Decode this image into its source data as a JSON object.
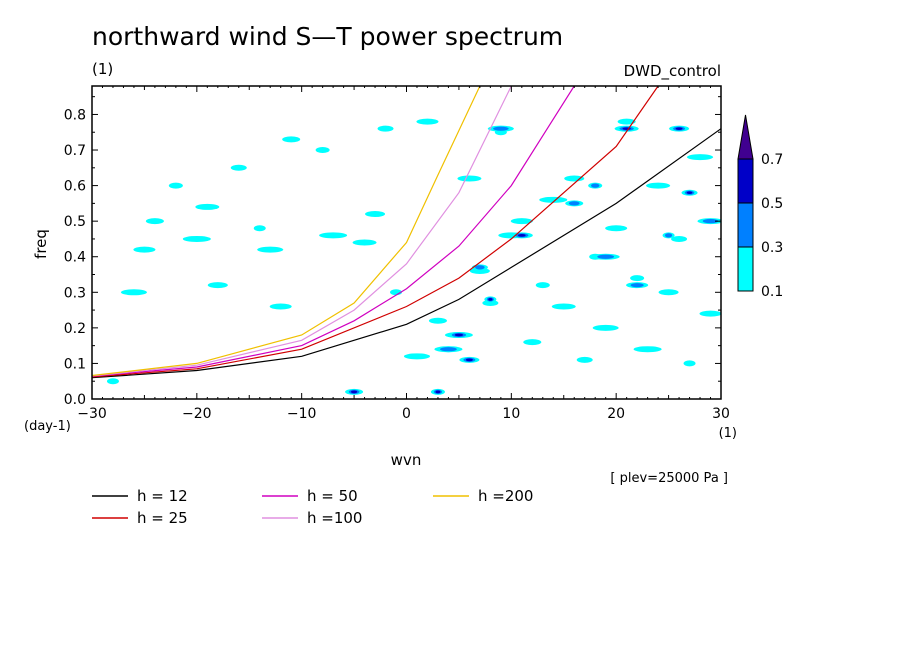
{
  "chart_data": {
    "type": "heatmap",
    "title": "northward wind S—T power spectrum",
    "units_label": "(1)",
    "run_label": "DWD_control",
    "xlabel": "wvn",
    "ylabel": "freq",
    "x_unit_label": "(1)",
    "y_unit_label": "(day-1)",
    "xlim": [
      -30,
      30
    ],
    "ylim": [
      0,
      0.88
    ],
    "x_ticks": [
      -30,
      -20,
      -10,
      0,
      10,
      20,
      30
    ],
    "y_ticks": [
      0.0,
      0.1,
      0.2,
      0.3,
      0.4,
      0.5,
      0.6,
      0.7,
      0.8
    ],
    "y_tick_labels": [
      "0.0",
      "0.1",
      "0.2",
      "0.3",
      "0.4",
      "0.5",
      "0.6",
      "0.7",
      "0.8"
    ],
    "x_tick_labels": [
      "−30",
      "−20",
      "−10",
      "0",
      "10",
      "20",
      "30"
    ],
    "level_note": "[ plev=25000 Pa ]",
    "colorbar": {
      "levels": [
        "0.1",
        "0.3",
        "0.5",
        "0.7"
      ],
      "colors": [
        "#00ffff",
        "#0080ff",
        "#0000c8",
        "#400090"
      ]
    },
    "dispersion_curves": [
      {
        "name": "h = 12",
        "color": "#000000",
        "points": [
          [
            -30,
            0.06
          ],
          [
            -20,
            0.08
          ],
          [
            -10,
            0.12
          ],
          [
            0,
            0.21
          ],
          [
            5,
            0.28
          ],
          [
            10,
            0.37
          ],
          [
            20,
            0.55
          ],
          [
            30,
            0.76
          ]
        ]
      },
      {
        "name": "h = 25",
        "color": "#d00000",
        "points": [
          [
            -30,
            0.062
          ],
          [
            -20,
            0.085
          ],
          [
            -10,
            0.14
          ],
          [
            0,
            0.26
          ],
          [
            5,
            0.34
          ],
          [
            10,
            0.45
          ],
          [
            20,
            0.71
          ],
          [
            24,
            0.88
          ]
        ]
      },
      {
        "name": "h = 50",
        "color": "#d000c0",
        "points": [
          [
            -30,
            0.064
          ],
          [
            -20,
            0.09
          ],
          [
            -10,
            0.15
          ],
          [
            -5,
            0.22
          ],
          [
            0,
            0.31
          ],
          [
            5,
            0.43
          ],
          [
            10,
            0.6
          ],
          [
            16,
            0.88
          ]
        ]
      },
      {
        "name": "h =100",
        "color": "#e090e0",
        "points": [
          [
            -30,
            0.065
          ],
          [
            -20,
            0.095
          ],
          [
            -10,
            0.165
          ],
          [
            -5,
            0.25
          ],
          [
            0,
            0.38
          ],
          [
            5,
            0.58
          ],
          [
            10,
            0.88
          ]
        ]
      },
      {
        "name": "h =200",
        "color": "#f0c000",
        "points": [
          [
            -30,
            0.066
          ],
          [
            -20,
            0.1
          ],
          [
            -10,
            0.18
          ],
          [
            -5,
            0.27
          ],
          [
            0,
            0.44
          ],
          [
            3,
            0.63
          ],
          [
            7,
            0.88
          ]
        ]
      }
    ],
    "contour_patches": [
      {
        "x": -28,
        "y": 0.05,
        "level": 0
      },
      {
        "x": -26,
        "y": 0.3,
        "level": 0
      },
      {
        "x": -25,
        "y": 0.42,
        "level": 0
      },
      {
        "x": -24,
        "y": 0.5,
        "level": 0
      },
      {
        "x": -22,
        "y": 0.6,
        "level": 0
      },
      {
        "x": -20,
        "y": 0.45,
        "level": 0
      },
      {
        "x": -19,
        "y": 0.54,
        "level": 0
      },
      {
        "x": -18,
        "y": 0.32,
        "level": 0
      },
      {
        "x": -16,
        "y": 0.65,
        "level": 0
      },
      {
        "x": -14,
        "y": 0.48,
        "level": 0
      },
      {
        "x": -13,
        "y": 0.42,
        "level": 0
      },
      {
        "x": -12,
        "y": 0.26,
        "level": 0
      },
      {
        "x": -11,
        "y": 0.73,
        "level": 0
      },
      {
        "x": -8,
        "y": 0.7,
        "level": 0
      },
      {
        "x": -7,
        "y": 0.46,
        "level": 0
      },
      {
        "x": -4,
        "y": 0.44,
        "level": 0
      },
      {
        "x": -3,
        "y": 0.52,
        "level": 0
      },
      {
        "x": -2,
        "y": 0.76,
        "level": 0
      },
      {
        "x": -1,
        "y": 0.3,
        "level": 0
      },
      {
        "x": 1,
        "y": 0.12,
        "level": 0
      },
      {
        "x": 2,
        "y": 0.78,
        "level": 0
      },
      {
        "x": 3,
        "y": 0.22,
        "level": 0
      },
      {
        "x": 4,
        "y": 0.14,
        "level": 0
      },
      {
        "x": 5,
        "y": 0.18,
        "level": 0
      },
      {
        "x": 6,
        "y": 0.62,
        "level": 0
      },
      {
        "x": 7,
        "y": 0.36,
        "level": 0
      },
      {
        "x": 8,
        "y": 0.27,
        "level": 0
      },
      {
        "x": 9,
        "y": 0.75,
        "level": 0
      },
      {
        "x": 10,
        "y": 0.46,
        "level": 0
      },
      {
        "x": 11,
        "y": 0.5,
        "level": 0
      },
      {
        "x": 12,
        "y": 0.16,
        "level": 0
      },
      {
        "x": 13,
        "y": 0.32,
        "level": 0
      },
      {
        "x": 14,
        "y": 0.56,
        "level": 0
      },
      {
        "x": 15,
        "y": 0.26,
        "level": 0
      },
      {
        "x": 16,
        "y": 0.62,
        "level": 0
      },
      {
        "x": 17,
        "y": 0.11,
        "level": 0
      },
      {
        "x": 18,
        "y": 0.4,
        "level": 0
      },
      {
        "x": 19,
        "y": 0.2,
        "level": 0
      },
      {
        "x": 20,
        "y": 0.48,
        "level": 0
      },
      {
        "x": 21,
        "y": 0.78,
        "level": 0
      },
      {
        "x": 22,
        "y": 0.34,
        "level": 0
      },
      {
        "x": 23,
        "y": 0.14,
        "level": 0
      },
      {
        "x": 24,
        "y": 0.6,
        "level": 0
      },
      {
        "x": 25,
        "y": 0.3,
        "level": 0
      },
      {
        "x": 26,
        "y": 0.45,
        "level": 0
      },
      {
        "x": 27,
        "y": 0.1,
        "level": 0
      },
      {
        "x": 28,
        "y": 0.68,
        "level": 0
      },
      {
        "x": 29,
        "y": 0.24,
        "level": 0
      },
      {
        "x": -5,
        "y": 0.02,
        "level": 2
      },
      {
        "x": 3,
        "y": 0.02,
        "level": 2
      },
      {
        "x": 4,
        "y": 0.14,
        "level": 1
      },
      {
        "x": 5,
        "y": 0.18,
        "level": 2
      },
      {
        "x": 6,
        "y": 0.11,
        "level": 2
      },
      {
        "x": 7,
        "y": 0.37,
        "level": 1
      },
      {
        "x": 8,
        "y": 0.28,
        "level": 2
      },
      {
        "x": 9,
        "y": 0.76,
        "level": 1
      },
      {
        "x": 11,
        "y": 0.46,
        "level": 2
      },
      {
        "x": 16,
        "y": 0.55,
        "level": 1
      },
      {
        "x": 18,
        "y": 0.6,
        "level": 1
      },
      {
        "x": 19,
        "y": 0.4,
        "level": 1
      },
      {
        "x": 21,
        "y": 0.76,
        "level": 2
      },
      {
        "x": 26,
        "y": 0.76,
        "level": 2
      },
      {
        "x": 27,
        "y": 0.58,
        "level": 2
      },
      {
        "x": 25,
        "y": 0.46,
        "level": 1
      },
      {
        "x": 29,
        "y": 0.5,
        "level": 1
      },
      {
        "x": 22,
        "y": 0.32,
        "level": 1
      }
    ]
  }
}
